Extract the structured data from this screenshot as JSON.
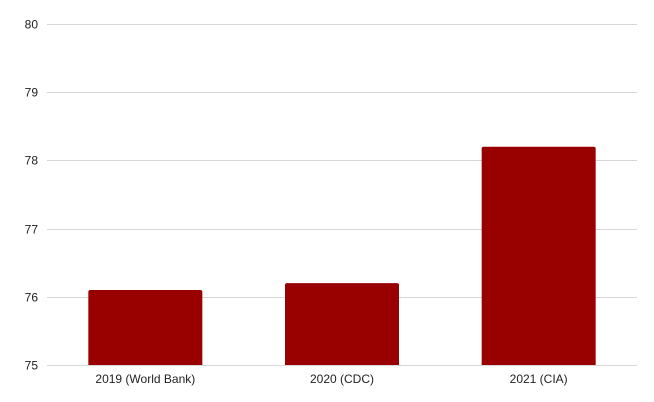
{
  "chart_data": {
    "type": "bar",
    "categories": [
      "2019 (World Bank)",
      "2020 (CDC)",
      "2021 (CIA)"
    ],
    "values": [
      76.1,
      76.2,
      78.2
    ],
    "ylim": [
      75,
      80
    ],
    "yticks": [
      75,
      76,
      77,
      78,
      79,
      80
    ],
    "grid": true,
    "legend": "none",
    "bar_color": "#990000"
  }
}
